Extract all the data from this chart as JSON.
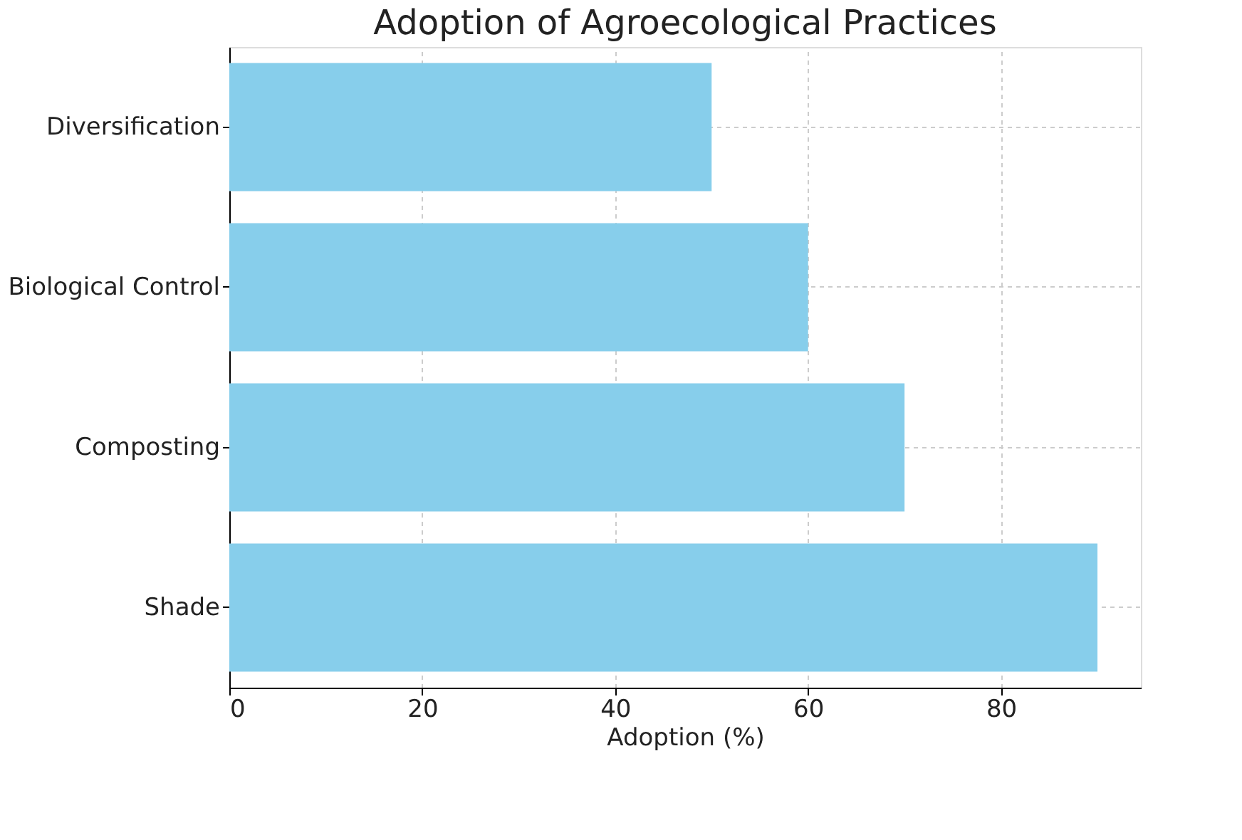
{
  "chart_data": {
    "type": "bar",
    "orientation": "horizontal",
    "title": "Adoption of Agroecological Practices",
    "xlabel": "Adoption (%)",
    "categories": [
      "Diversification",
      "Biological Control",
      "Composting",
      "Shade"
    ],
    "values": [
      50,
      60,
      70,
      90
    ],
    "color": "#87ceeb",
    "xlim": [
      0,
      94.5
    ],
    "xticks": [
      0,
      20,
      40,
      60,
      80
    ],
    "grid": true
  }
}
